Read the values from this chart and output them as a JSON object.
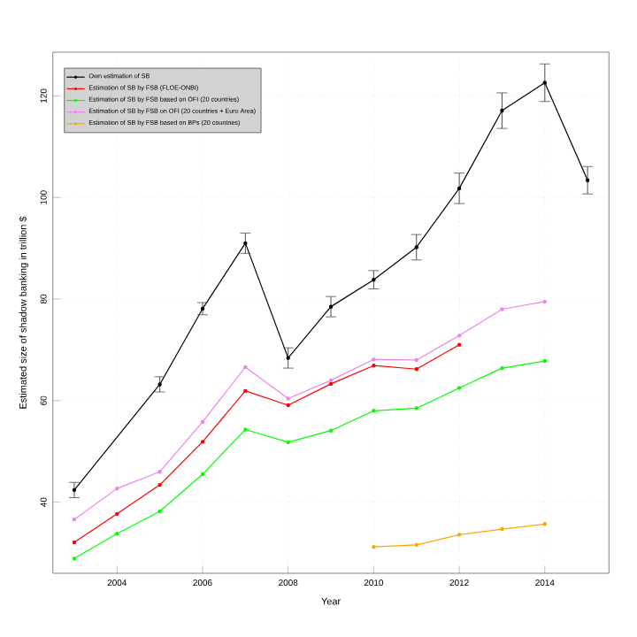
{
  "chart_data": {
    "type": "line",
    "xlabel": "Year",
    "ylabel": "Estimated size of shadow banking in trillion $",
    "x": [
      2003,
      2004,
      2005,
      2006,
      2007,
      2008,
      2009,
      2010,
      2011,
      2012,
      2013,
      2014
    ],
    "series": [
      {
        "name": "Own estimation of SB",
        "color": "#000000",
        "x": [
          2003,
          2005,
          2006,
          2007,
          2008,
          2009,
          2010,
          2011,
          2012,
          2013,
          2014,
          2015
        ],
        "values": [
          42.4,
          63.2,
          78.1,
          91.0,
          68.4,
          78.5,
          83.8,
          90.2,
          101.8,
          117.1,
          122.6,
          103.4
        ],
        "errors": [
          1.5,
          1.5,
          1.2,
          2,
          2,
          2,
          1.8,
          2.5,
          3,
          3.5,
          3.7,
          2.7
        ]
      },
      {
        "name": "Estimation of SB by FSB (FLOE-ONBI)",
        "color": "#ff0000",
        "values": [
          32.1,
          37.7,
          43.4,
          51.9,
          61.9,
          59.1,
          63.3,
          66.9,
          66.2,
          71.0,
          null,
          null
        ]
      },
      {
        "name": "Estimation of SB by FSB based on OFI (20 countries)",
        "color": "#00ff00",
        "values": [
          28.9,
          33.8,
          38.2,
          45.5,
          54.3,
          51.8,
          54.1,
          58.0,
          58.5,
          62.5,
          66.4,
          67.8
        ]
      },
      {
        "name": "Estimation of SB by FSB on OFI (20 countries + Euro Area)",
        "color": "#ee82ee",
        "values": [
          36.6,
          42.7,
          46.0,
          55.8,
          66.6,
          60.4,
          64.0,
          68.1,
          68.0,
          72.8,
          78.0,
          79.5
        ]
      },
      {
        "name": "Estimation of SB by FSB based on BPs (20 countries)",
        "color": "#ffa500",
        "values": [
          null,
          null,
          null,
          null,
          null,
          null,
          null,
          31.2,
          31.6,
          33.6,
          34.7,
          35.7
        ]
      }
    ],
    "xlim": [
      2002.5,
      2015.5
    ],
    "ylim": [
      26,
      128.6
    ],
    "xticks": [
      2004,
      2006,
      2008,
      2010,
      2012,
      2014
    ],
    "yticks": [
      40,
      60,
      80,
      100,
      120
    ],
    "grid": true,
    "legend": "top left",
    "marker": "circle",
    "line_style": "solid"
  }
}
